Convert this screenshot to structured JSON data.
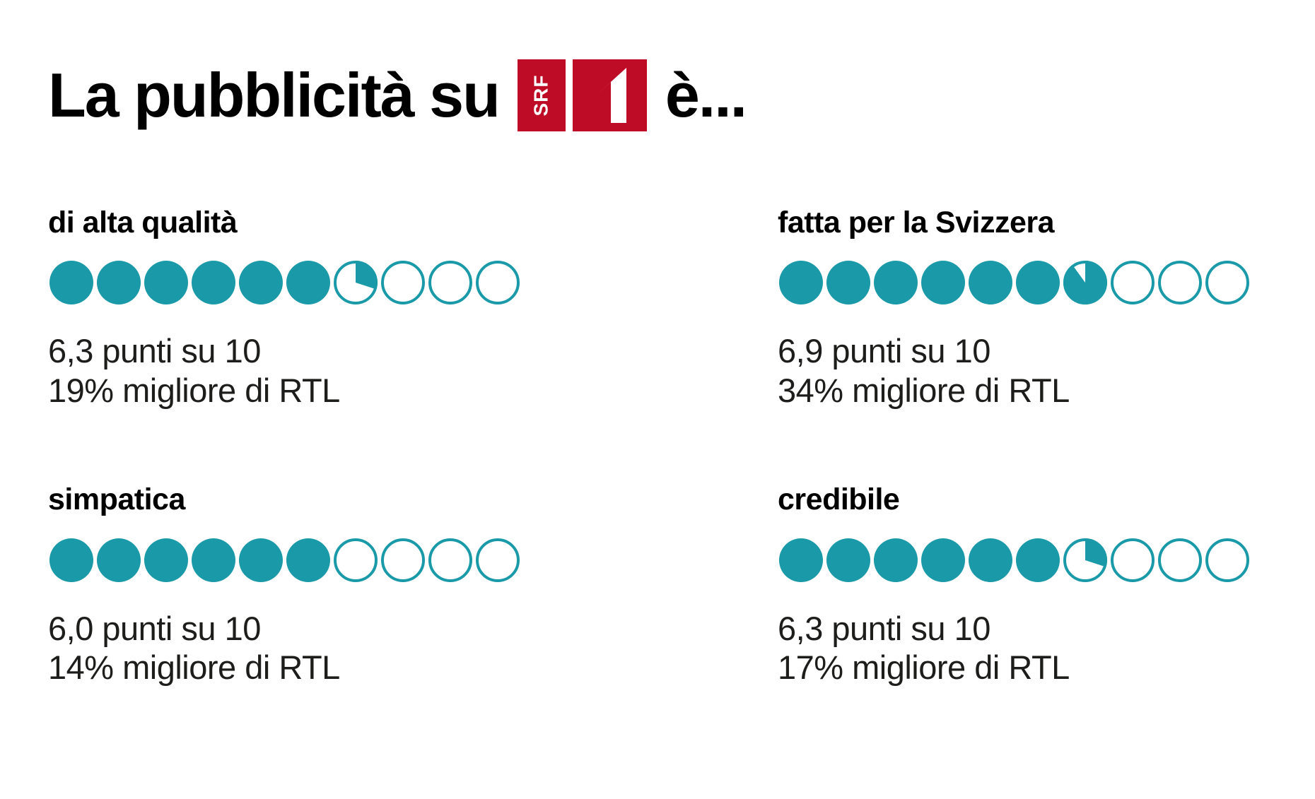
{
  "header": {
    "title_prefix": "La pubblicità su",
    "title_suffix": "è...",
    "logo": {
      "station": "SRF",
      "channel": "1"
    }
  },
  "colors": {
    "teal": "#1A9AA8",
    "srf_red": "#BE0C26",
    "ink": "#000000",
    "body_ink": "#1d1d1b"
  },
  "metrics": [
    {
      "label": "di alta qualità",
      "score": 6.3,
      "score_text": "6,3 punti su 10",
      "comparison_text": "19% migliore di RTL"
    },
    {
      "label": "fatta per la Svizzera",
      "score": 6.9,
      "score_text": "6,9 punti su 10",
      "comparison_text": "34% migliore di RTL"
    },
    {
      "label": "simpatica",
      "score": 6.0,
      "score_text": "6,0 punti su 10",
      "comparison_text": "14% migliore di RTL"
    },
    {
      "label": "credibile",
      "score": 6.3,
      "score_text": "6,3 punti su 10",
      "comparison_text": "17% migliore di RTL"
    }
  ],
  "chart_data": {
    "type": "pictogram",
    "subtype": "dot-rating (10 circles per category, partial circle = fractional score)",
    "title": "La pubblicità su SRF 1 è...",
    "categories": [
      "di alta qualità",
      "fatta per la Svizzera",
      "simpatica",
      "credibile"
    ],
    "values": [
      6.3,
      6.9,
      6.0,
      6.3
    ],
    "scale_max": 10,
    "unit": "punti su 10",
    "value_labels": [
      "6,3 punti su 10",
      "6,9 punti su 10",
      "6,0 punti su 10",
      "6,3 punti su 10"
    ],
    "comparisons": [
      "19% migliore di RTL",
      "34% migliore di RTL",
      "14% migliore di RTL",
      "17% migliore di RTL"
    ],
    "comparison_baseline": "RTL",
    "dot_color": "#1A9AA8",
    "layout": "2x2 grid, legend none, white background"
  }
}
